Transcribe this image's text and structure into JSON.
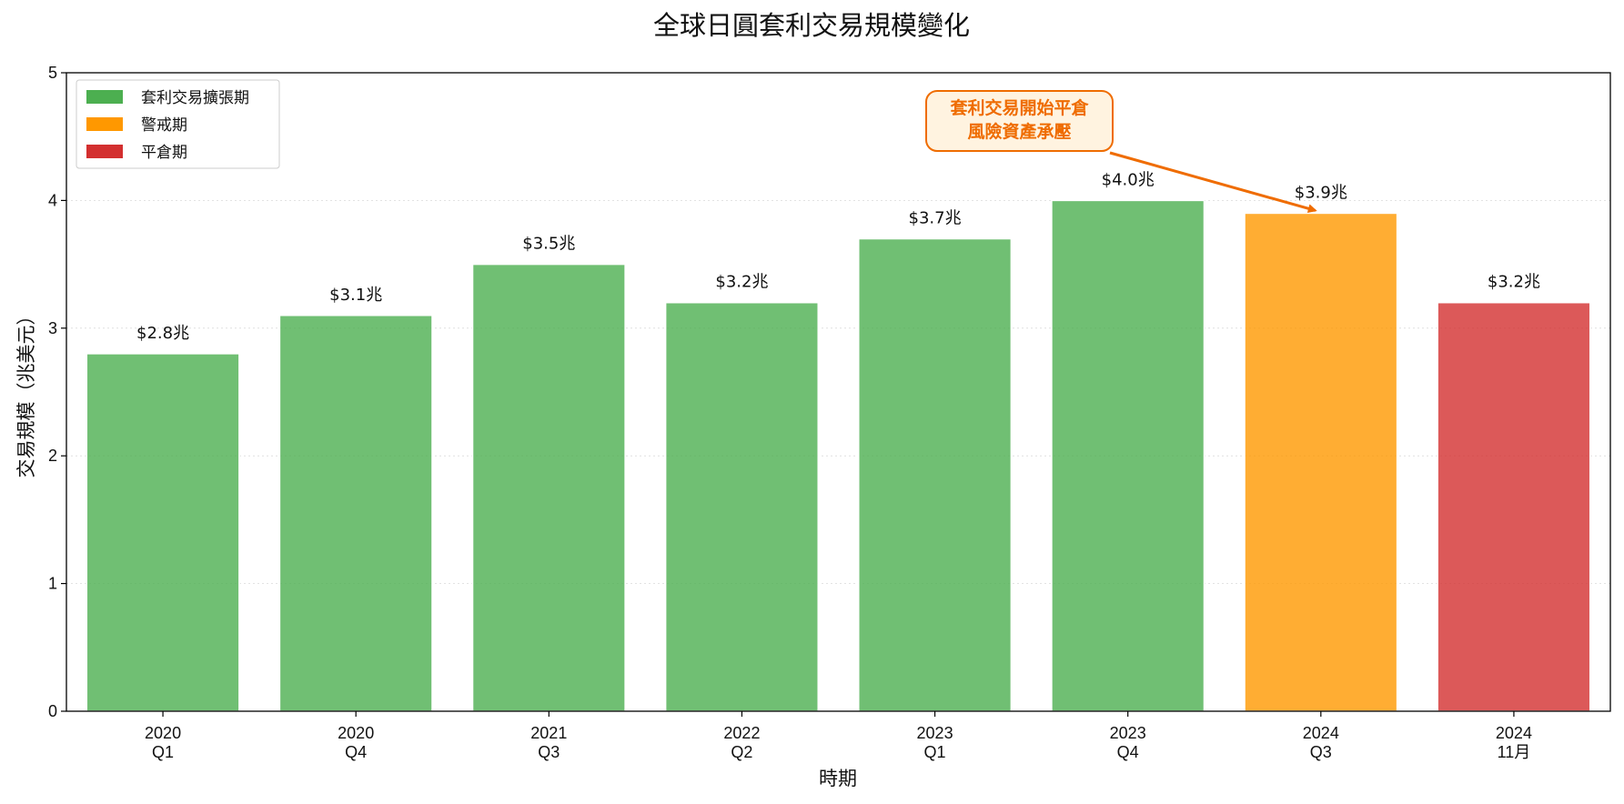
{
  "chart_data": {
    "type": "bar",
    "title": "全球日圓套利交易規模變化",
    "xlabel": "時期",
    "ylabel": "交易規模（兆美元）",
    "ylim": [
      0,
      5
    ],
    "yticks": [
      "0",
      "1",
      "2",
      "3",
      "4",
      "5"
    ],
    "grid": "horizontal-dotted",
    "legend_position": "top-left",
    "categories": [
      [
        "2020",
        "Q1"
      ],
      [
        "2020",
        "Q4"
      ],
      [
        "2021",
        "Q3"
      ],
      [
        "2022",
        "Q2"
      ],
      [
        "2023",
        "Q1"
      ],
      [
        "2023",
        "Q4"
      ],
      [
        "2024",
        "Q3"
      ],
      [
        "2024",
        "11月"
      ]
    ],
    "values": [
      2.8,
      3.1,
      3.5,
      3.2,
      3.7,
      4.0,
      3.9,
      3.2
    ],
    "value_labels": [
      "$2.8兆",
      "$3.1兆",
      "$3.5兆",
      "$3.2兆",
      "$3.7兆",
      "$4.0兆",
      "$3.9兆",
      "$3.2兆"
    ],
    "bar_phase": [
      0,
      0,
      0,
      0,
      0,
      0,
      1,
      2
    ],
    "legend": [
      {
        "label": "套利交易擴張期",
        "color": "#4caf50"
      },
      {
        "label": "警戒期",
        "color": "#ff9800"
      },
      {
        "label": "平倉期",
        "color": "#d32f2f"
      }
    ],
    "annotation": {
      "lines": [
        "套利交易開始平倉",
        "風險資產承壓"
      ],
      "target_index": 6,
      "target_value": 3.9,
      "color": "#ef6c00",
      "background": "#fff3e0"
    }
  }
}
